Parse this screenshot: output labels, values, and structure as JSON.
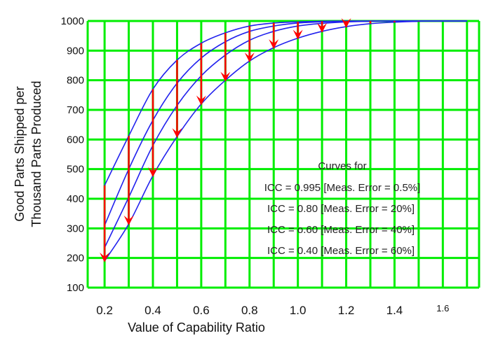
{
  "chart_data": {
    "type": "line",
    "title": "",
    "xlabel": "Value of Capability Ratio",
    "ylabel": [
      "Good Parts Shipped per",
      "Thousand Parts Produced"
    ],
    "xlim": [
      0.13,
      1.75
    ],
    "ylim": [
      100,
      1000
    ],
    "grid": true,
    "x_ticks": [
      "0.2",
      "0.4",
      "0.6",
      "0.8",
      "1.0",
      "1.2",
      "1.4",
      "1.6"
    ],
    "x_tick_values": [
      0.2,
      0.4,
      0.6,
      0.8,
      1.0,
      1.2,
      1.4,
      1.6
    ],
    "y_ticks": [
      "100",
      "200",
      "300",
      "400",
      "500",
      "600",
      "700",
      "800",
      "900",
      "1000"
    ],
    "y_tick_values": [
      100,
      200,
      300,
      400,
      500,
      600,
      700,
      800,
      900,
      1000
    ],
    "x_grid_values": [
      0.2,
      0.3,
      0.4,
      0.5,
      0.6,
      0.7,
      0.8,
      0.9,
      1.0,
      1.1,
      1.2,
      1.3,
      1.4,
      1.5,
      1.6,
      1.7
    ],
    "x": [
      0.2,
      0.3,
      0.4,
      0.5,
      0.6,
      0.7,
      0.8,
      0.9,
      1.0,
      1.1,
      1.2,
      1.3,
      1.4,
      1.5,
      1.6,
      1.7
    ],
    "series": [
      {
        "values": [
          445,
          612,
          770,
          868,
          925,
          960,
          983,
          993,
          997,
          999,
          1000,
          1000,
          1000,
          1000,
          1000,
          1000
        ]
      },
      {
        "values": [
          310,
          500,
          665,
          790,
          875,
          930,
          965,
          983,
          993,
          997,
          999,
          1000,
          1000,
          1000,
          1000,
          1000
        ]
      },
      {
        "values": [
          235,
          405,
          580,
          715,
          815,
          885,
          935,
          965,
          983,
          992,
          997,
          999,
          1000,
          1000,
          1000,
          1000
        ]
      },
      {
        "values": [
          190,
          315,
          478,
          610,
          720,
          800,
          865,
          910,
          942,
          965,
          981,
          991,
          996,
          999,
          1000,
          1000
        ]
      }
    ],
    "arrows": {
      "x": [
        0.2,
        0.3,
        0.4,
        0.5,
        0.6,
        0.7,
        0.8,
        0.9,
        1.0,
        1.1,
        1.2,
        1.3,
        1.4,
        1.5,
        1.6
      ],
      "from_series": 0,
      "to_series": 3
    },
    "legend": {
      "heading": "Curves for",
      "entries": [
        "ICC = 0.995  [Meas. Error = 0.5%]",
        "ICC = 0.80  [Meas. Error = 20%]",
        "ICC = o.60  [Meas. Error = 40%]",
        "ICC = 0.40  [Meas. Error = 60%]"
      ],
      "placement": "center-right"
    },
    "colors": {
      "grid": "#00ee00",
      "curves": "#2222ee",
      "arrows": "#ff0000"
    }
  }
}
